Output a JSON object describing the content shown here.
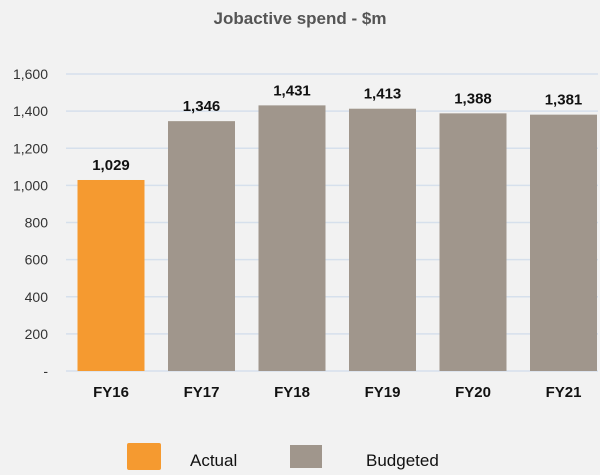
{
  "chart_data": {
    "type": "bar",
    "title": "Jobactive spend - $m",
    "categories": [
      "FY16",
      "FY17",
      "FY18",
      "FY19",
      "FY20",
      "FY21"
    ],
    "values": [
      1029,
      1346,
      1431,
      1413,
      1388,
      1381
    ],
    "data_labels": [
      "1,029",
      "1,346",
      "1,431",
      "1,413",
      "1,388",
      "1,381"
    ],
    "bar_types": [
      "Actual",
      "Budgeted",
      "Budgeted",
      "Budgeted",
      "Budgeted",
      "Budgeted"
    ],
    "ylim": [
      0,
      1600
    ],
    "yticks": [
      0,
      200,
      400,
      600,
      800,
      1000,
      1200,
      1400,
      1600
    ],
    "ytick_labels": [
      "-",
      "200",
      "400",
      "600",
      "800",
      "1,000",
      "1,200",
      "1,400",
      "1,600"
    ],
    "xlabel": "",
    "ylabel": "",
    "grid": true,
    "legend_position": "bottom",
    "legend": [
      {
        "name": "Actual",
        "color": "#f59a30"
      },
      {
        "name": "Budgeted",
        "color": "#a0968c"
      }
    ],
    "colors": {
      "Actual": "#f59a30",
      "Budgeted": "#a0968c",
      "grid": "#d6e0ec",
      "background": "#f2f2f2"
    }
  }
}
